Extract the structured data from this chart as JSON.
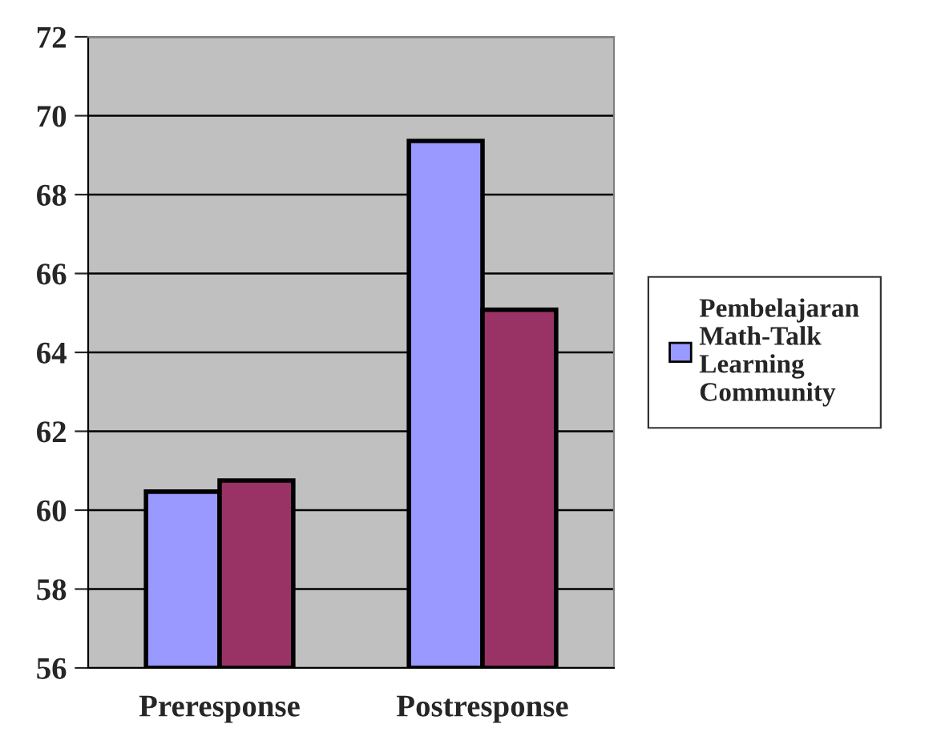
{
  "chart_data": {
    "type": "bar",
    "categories": [
      "Preresponse",
      "Postresponse"
    ],
    "series": [
      {
        "name": "Pembelajaran\nMath-Talk\nLearning\nCommunity",
        "color": "#9999ff",
        "values": [
          60.47,
          69.36
        ]
      },
      {
        "color": "#993366",
        "values": [
          60.75,
          65.08
        ]
      }
    ],
    "ylim": [
      56,
      72
    ],
    "yticks": [
      56,
      58,
      60,
      62,
      64,
      66,
      68,
      70,
      72
    ],
    "grid": "y",
    "legend": "right"
  }
}
